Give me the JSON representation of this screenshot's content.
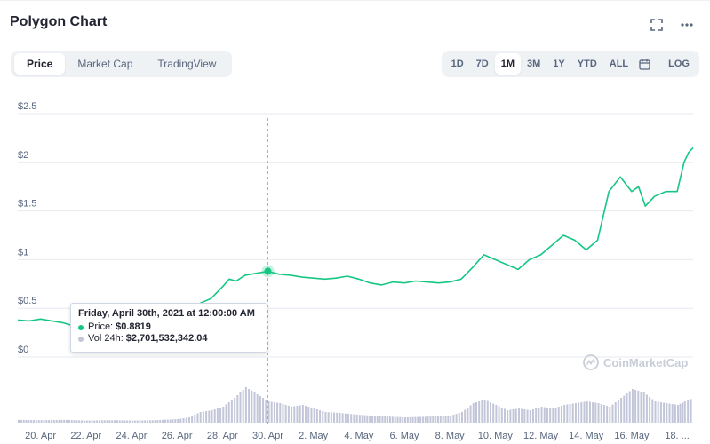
{
  "header": {
    "title": "Polygon Chart"
  },
  "tabs": [
    {
      "label": "Price",
      "active": true
    },
    {
      "label": "Market Cap",
      "active": false
    },
    {
      "label": "TradingView",
      "active": false
    }
  ],
  "ranges": [
    {
      "label": "1D",
      "active": false
    },
    {
      "label": "7D",
      "active": false
    },
    {
      "label": "1M",
      "active": true
    },
    {
      "label": "3M",
      "active": false
    },
    {
      "label": "1Y",
      "active": false
    },
    {
      "label": "YTD",
      "active": false
    },
    {
      "label": "ALL",
      "active": false
    }
  ],
  "log_label": "LOG",
  "tooltip": {
    "date": "Friday, April 30th, 2021 at 12:00:00 AM",
    "price_label": "Price:",
    "price_value": "$0.8819",
    "vol_label": "Vol 24h:",
    "vol_value": "$2,701,532,342.04"
  },
  "watermark": "CoinMarketCap",
  "colors": {
    "line": "#16c784",
    "volume": "#c2c6d8",
    "grid": "#e7eaf0",
    "crosshair": "#a6b0c3"
  },
  "icons": [
    "fullscreen-icon",
    "more-icon",
    "calendar-icon"
  ],
  "chart_data": {
    "type": "line",
    "title": "Polygon Chart",
    "ylim": [
      0,
      2.5
    ],
    "y_ticks": [
      "$2.5",
      "$2",
      "$1.5",
      "$1",
      "$0.5",
      "$0"
    ],
    "y_tick_values": [
      2.5,
      2,
      1.5,
      1,
      0.5,
      0
    ],
    "x_ticks": [
      "20. Apr",
      "22. Apr",
      "24. Apr",
      "26. Apr",
      "28. Apr",
      "30. Apr",
      "2. May",
      "4. May",
      "6. May",
      "8. May",
      "10. May",
      "12. May",
      "14. May",
      "16. May",
      "18. ..."
    ],
    "x_tick_days": [
      1,
      3,
      5,
      7,
      9,
      11,
      13,
      15,
      17,
      19,
      21,
      23,
      25,
      27,
      29
    ],
    "x_range_days": [
      0,
      29.7
    ],
    "series": [
      {
        "type": "line",
        "x_days": [
          0,
          0.5,
          1,
          1.5,
          2,
          2.3,
          2.6,
          3,
          3.5,
          4,
          4.5,
          5,
          5.5,
          6,
          6.5,
          7,
          7.5,
          8,
          8.5,
          9,
          9.3,
          9.6,
          10,
          10.5,
          11,
          11.5,
          12,
          12.5,
          13,
          13.5,
          14,
          14.5,
          15,
          15.5,
          16,
          16.5,
          17,
          17.5,
          18,
          18.5,
          19,
          19.5,
          20,
          20.5,
          21,
          21.5,
          22,
          22.5,
          23,
          23.5,
          24,
          24.5,
          25,
          25.5,
          26,
          26.5,
          27,
          27.3,
          27.6,
          28,
          28.5,
          29,
          29.3,
          29.5,
          29.7
        ],
        "values": [
          0.38,
          0.37,
          0.39,
          0.37,
          0.35,
          0.33,
          0.34,
          0.36,
          0.35,
          0.39,
          0.38,
          0.37,
          0.4,
          0.42,
          0.41,
          0.43,
          0.47,
          0.55,
          0.6,
          0.72,
          0.8,
          0.78,
          0.84,
          0.86,
          0.88,
          0.85,
          0.84,
          0.82,
          0.81,
          0.8,
          0.81,
          0.83,
          0.8,
          0.76,
          0.74,
          0.77,
          0.76,
          0.78,
          0.77,
          0.76,
          0.77,
          0.8,
          0.92,
          1.05,
          1.0,
          0.95,
          0.9,
          1.0,
          1.05,
          1.15,
          1.25,
          1.2,
          1.1,
          1.2,
          1.7,
          1.85,
          1.7,
          1.75,
          1.55,
          1.65,
          1.7,
          1.7,
          2.0,
          2.1,
          2.15
        ]
      },
      {
        "type": "volume",
        "x_days": [
          0,
          1,
          2,
          3,
          4,
          5,
          6,
          7,
          7.5,
          8,
          8.5,
          9,
          9.5,
          10,
          10.5,
          11,
          11.5,
          12,
          12.5,
          13,
          13.5,
          14,
          14.5,
          15,
          16,
          17,
          18,
          19,
          19.5,
          20,
          20.5,
          21,
          21.5,
          22,
          22.5,
          23,
          23.5,
          24,
          24.5,
          25,
          25.5,
          26,
          26.5,
          27,
          27.5,
          28,
          28.5,
          29,
          29.3,
          29.7
        ],
        "values": [
          0.08,
          0.07,
          0.08,
          0.06,
          0.07,
          0.06,
          0.07,
          0.1,
          0.15,
          0.3,
          0.35,
          0.45,
          0.7,
          1.0,
          0.8,
          0.6,
          0.55,
          0.45,
          0.5,
          0.4,
          0.3,
          0.28,
          0.25,
          0.22,
          0.18,
          0.15,
          0.17,
          0.2,
          0.3,
          0.55,
          0.65,
          0.5,
          0.35,
          0.4,
          0.35,
          0.45,
          0.4,
          0.5,
          0.55,
          0.6,
          0.55,
          0.45,
          0.7,
          0.95,
          0.85,
          0.6,
          0.55,
          0.5,
          0.6,
          0.7
        ]
      }
    ],
    "crosshair_day": 11,
    "crosshair_value": 0.8819,
    "grid": true
  }
}
